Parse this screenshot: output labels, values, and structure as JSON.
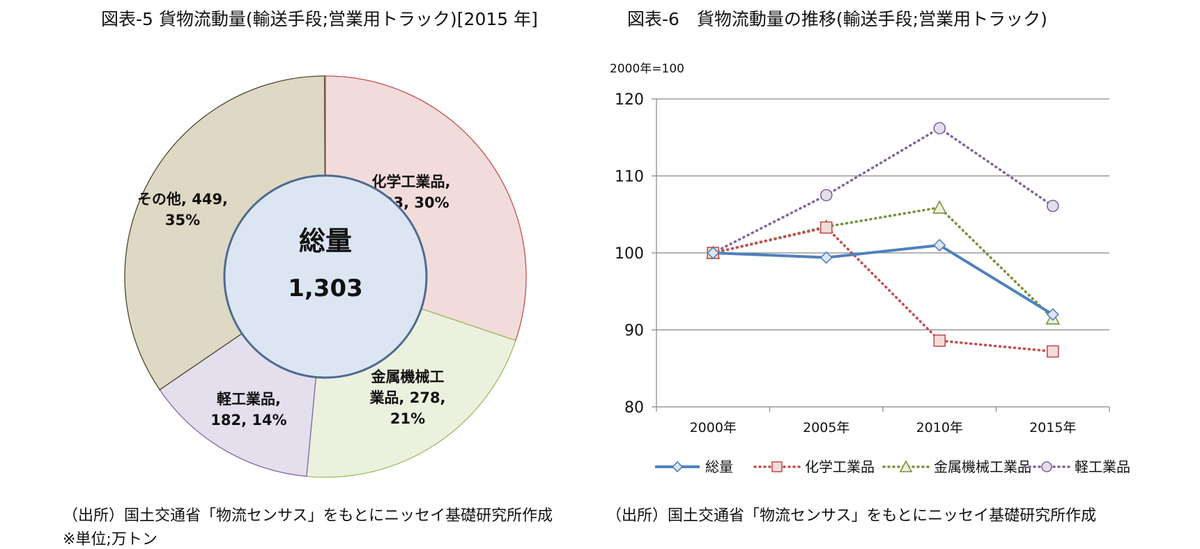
{
  "titles": {
    "left": "図表-5 貨物流動量(輸送手段;営業用トラック)[2015 年]",
    "right": "図表-6　貨物流動量の推移(輸送手段;営業用トラック)"
  },
  "notes": {
    "source_left": "（出所）国土交通省「物流センサス」をもとにニッセイ基礎研究所作成",
    "unit_left": "※単位;万トン",
    "source_right": "（出所）国土交通省「物流センサス」をもとにニッセイ基礎研究所作成"
  },
  "chart_data": [
    {
      "type": "pie",
      "center_title": "総量",
      "center_value": "1,303",
      "total": 1303,
      "slices": [
        {
          "label_lines": [
            "化学工業品,",
            "393, 30%"
          ],
          "value": 393,
          "percent": 30,
          "color": "#f2dcdb",
          "stroke": "#c0504d"
        },
        {
          "label_lines": [
            "金属機械工",
            "業品, 278,",
            "21%"
          ],
          "value": 278,
          "percent": 21,
          "color": "#ebf1de",
          "stroke": "#9bbb59"
        },
        {
          "label_lines": [
            "軽工業品,",
            "182, 14%"
          ],
          "value": 182,
          "percent": 14,
          "color": "#e4dfec",
          "stroke": "#8064a2"
        },
        {
          "label_lines": [
            "その他, 449,",
            "35%"
          ],
          "value": 449,
          "percent": 35,
          "color": "#ddd9c4",
          "stroke": "#4a452a"
        }
      ],
      "center_fill": "#dce6f2",
      "center_stroke": "#4f6a8f"
    },
    {
      "type": "line",
      "unit_note": "2000年=100",
      "categories": [
        "2000年",
        "2005年",
        "2010年",
        "2015年"
      ],
      "ylim": [
        80,
        120
      ],
      "yticks": [
        80,
        90,
        100,
        110,
        120
      ],
      "grid": true,
      "legend_position": "bottom",
      "series": [
        {
          "name": "総量",
          "values": [
            100,
            99.4,
            101,
            92
          ],
          "color": "#4f81bd",
          "marker": "diamond",
          "dash": "solid"
        },
        {
          "name": "化学工業品",
          "values": [
            100,
            103.3,
            88.6,
            87.2
          ],
          "color": "#c0504d",
          "marker": "square",
          "dash": "dotted"
        },
        {
          "name": "金属機械工業品",
          "values": [
            100,
            103.4,
            105.9,
            91.5
          ],
          "color": "#77933c",
          "marker": "triangle",
          "dash": "dotted"
        },
        {
          "name": "軽工業品",
          "values": [
            100,
            107.5,
            116.2,
            106.1
          ],
          "color": "#8064a2",
          "marker": "circle",
          "dash": "dotted"
        }
      ]
    }
  ]
}
